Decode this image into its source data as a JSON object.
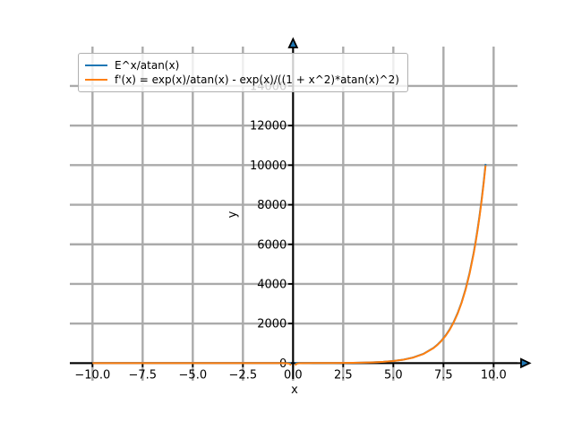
{
  "chart_data": {
    "type": "line",
    "title": "",
    "xlabel": "x",
    "ylabel": "y",
    "xlim": [
      -11.13,
      11.19
    ],
    "ylim": [
      -890,
      15990
    ],
    "x_ticks": [
      -10.0,
      -7.5,
      -5.0,
      -2.5,
      0.0,
      2.5,
      5.0,
      7.5,
      10.0
    ],
    "x_tick_labels": [
      "−10.0",
      "−7.5",
      "−5.0",
      "−2.5",
      "0.0",
      "2.5",
      "5.0",
      "7.5",
      "10.0"
    ],
    "y_ticks": [
      0,
      2000,
      4000,
      6000,
      8000,
      10000,
      12000,
      14000
    ],
    "y_tick_labels": [
      "0",
      "2000",
      "4000",
      "6000",
      "8000",
      "10000",
      "12000",
      "14000"
    ],
    "grid": true,
    "grid_color": "#aaaaaa",
    "axis_color": "#000000",
    "arrow_fill_color": "#1f77b4",
    "legend_position": "upper left",
    "series": [
      {
        "name": "E^x/atan(x)",
        "color": "#1f77b4",
        "points": [
          [
            -10,
            0
          ],
          [
            -8,
            0
          ],
          [
            -6,
            0
          ],
          [
            -4,
            -0.01
          ],
          [
            -2,
            -0.12
          ],
          [
            -1,
            -0.47
          ],
          [
            -0.5,
            -1.31
          ],
          [
            -0.3,
            -2.54
          ],
          [
            -0.2,
            -4.15
          ],
          [
            -0.1,
            -9.08
          ],
          [
            0,
            null
          ],
          [
            0.1,
            11.09
          ],
          [
            0.2,
            6.19
          ],
          [
            0.3,
            4.63
          ],
          [
            0.5,
            3.56
          ],
          [
            0.8,
            3.3
          ],
          [
            1,
            3.46
          ],
          [
            1.5,
            4.56
          ],
          [
            2,
            6.67
          ],
          [
            2.5,
            10.24
          ],
          [
            3,
            16.08
          ],
          [
            3.5,
            25.62
          ],
          [
            4,
            41.18
          ],
          [
            4.5,
            66.57
          ],
          [
            5,
            108.06
          ],
          [
            5.5,
            175.92
          ],
          [
            6,
            287.02
          ],
          [
            6.5,
            469.04
          ],
          [
            7,
            767.46
          ],
          [
            7.2,
            934.87
          ],
          [
            7.4,
            1138.94
          ],
          [
            7.6,
            1387.79
          ],
          [
            7.8,
            1691.28
          ],
          [
            8,
            2060.97
          ],
          [
            8.2,
            2512.3
          ],
          [
            8.4,
            3062.4
          ],
          [
            8.6,
            3733.5
          ],
          [
            8.8,
            4552.3
          ],
          [
            9,
            5549.7
          ],
          [
            9.1,
            6125.6
          ],
          [
            9.2,
            6767.3
          ],
          [
            9.3,
            7470.6
          ],
          [
            9.4,
            8252.9
          ],
          [
            9.5,
            9113.4
          ],
          [
            9.6,
            10064.8
          ]
        ]
      },
      {
        "name": "f'(x) = exp(x)/atan(x) - exp(x)/((1 + x^2)*atan(x)^2)",
        "color": "#ff7f0e",
        "points": [
          [
            -10,
            0
          ],
          [
            -8,
            0
          ],
          [
            -6,
            0
          ],
          [
            -4,
            -0.02
          ],
          [
            -2,
            -0.14
          ],
          [
            -1,
            -0.77
          ],
          [
            -0.5,
            -3.57
          ],
          [
            -0.3,
            -10.54
          ],
          [
            -0.2,
            -24.35
          ],
          [
            -0.1,
            -99.3
          ],
          [
            0,
            null
          ],
          [
            0.1,
            -99.1
          ],
          [
            0.2,
            -23.95
          ],
          [
            0.3,
            -9.95
          ],
          [
            0.5,
            -2.58
          ],
          [
            0.8,
            0.32
          ],
          [
            1,
            1.26
          ],
          [
            1.5,
            3.13
          ],
          [
            2,
            5.46
          ],
          [
            2.5,
            9.05
          ],
          [
            3,
            14.79
          ],
          [
            3.5,
            24.12
          ],
          [
            4,
            39.35
          ],
          [
            4.5,
            64.25
          ],
          [
            5,
            105.03
          ],
          [
            5.5,
            171.87
          ],
          [
            6,
            281.5
          ],
          [
            6.5,
            461.4
          ],
          [
            7,
            756.7
          ],
          [
            7.2,
            922.5
          ],
          [
            7.4,
            1124.7
          ],
          [
            7.6,
            1371.4
          ],
          [
            7.8,
            1672.3
          ],
          [
            8,
            2039.1
          ],
          [
            8.2,
            2486.9
          ],
          [
            8.4,
            3032.9
          ],
          [
            8.6,
            3699.3
          ],
          [
            8.8,
            4512.5
          ],
          [
            9,
            5503.4
          ],
          [
            9.1,
            6075.6
          ],
          [
            9.2,
            6713.3
          ],
          [
            9.3,
            7412.3
          ],
          [
            9.4,
            8189.9
          ],
          [
            9.5,
            9045.3
          ],
          [
            9.6,
            9991.2
          ]
        ]
      }
    ]
  }
}
